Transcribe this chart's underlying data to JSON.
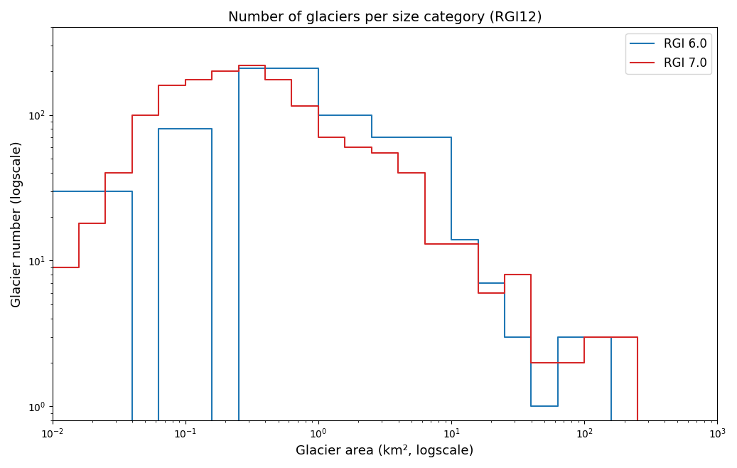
{
  "title": "Number of glaciers per size category (RGI12)",
  "xlabel": "Glacier area (km², logscale)",
  "ylabel": "Glacier number (logscale)",
  "rgi60_color": "#1f77b4",
  "rgi70_color": "#d62728",
  "legend_labels": [
    "RGI 6.0",
    "RGI 7.0"
  ],
  "bin_edges": [
    0.01,
    0.0158,
    0.0251,
    0.0398,
    0.0631,
    0.1,
    0.158,
    0.251,
    0.398,
    0.631,
    1.0,
    1.585,
    2.512,
    3.981,
    6.31,
    10.0,
    15.85,
    25.12,
    39.81,
    63.1,
    100.0,
    158.5,
    251.2,
    398.1,
    631.0,
    1000.0
  ],
  "rgi60_counts": [
    30,
    30,
    30,
    0,
    80,
    80,
    0,
    210,
    210,
    210,
    100,
    100,
    70,
    70,
    70,
    14,
    7,
    3,
    1,
    3,
    3,
    0,
    0,
    0,
    0
  ],
  "rgi70_counts": [
    9,
    18,
    40,
    100,
    160,
    175,
    200,
    220,
    175,
    115,
    70,
    60,
    55,
    40,
    13,
    13,
    6,
    8,
    2,
    2,
    3,
    3,
    0,
    0,
    0
  ]
}
